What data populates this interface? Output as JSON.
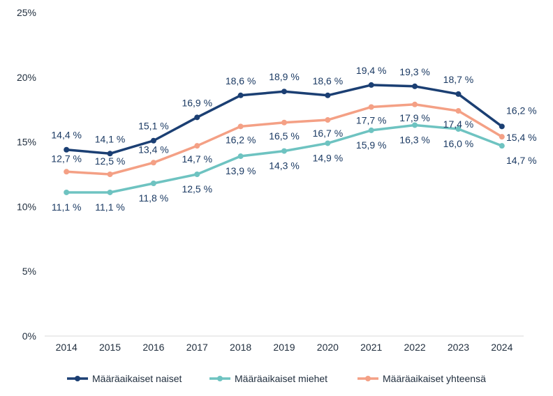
{
  "chart_data": {
    "type": "line",
    "categories": [
      "2014",
      "2015",
      "2016",
      "2017",
      "2018",
      "2019",
      "2020",
      "2021",
      "2022",
      "2023",
      "2024"
    ],
    "ylim": [
      0,
      25
    ],
    "yticks": [
      0,
      5,
      10,
      15,
      20,
      25
    ],
    "ytick_labels": [
      "0%",
      "5%",
      "10%",
      "15%",
      "20%",
      "25%"
    ],
    "legend_position": "bottom",
    "series": [
      {
        "name": "Määräaikaiset naiset",
        "color": "#1b3f73",
        "values": [
          14.4,
          14.1,
          15.1,
          16.9,
          18.6,
          18.9,
          18.6,
          19.4,
          19.3,
          18.7,
          16.2
        ],
        "labels": [
          "14,4 %",
          "14,1 %",
          "15,1 %",
          "16,9 %",
          "18,6 %",
          "18,9 %",
          "18,6 %",
          "19,4 %",
          "19,3 %",
          "18,7 %",
          "16,2 %"
        ]
      },
      {
        "name": "Määräaikaiset miehet",
        "color": "#6ec3c1",
        "values": [
          11.1,
          11.1,
          11.8,
          12.5,
          13.9,
          14.3,
          14.9,
          15.9,
          16.3,
          16.0,
          14.7
        ],
        "labels": [
          "11,1 %",
          "11,1 %",
          "11,8 %",
          "12,5 %",
          "13,9 %",
          "14,3 %",
          "14,9 %",
          "15,9 %",
          "16,3 %",
          "16,0 %",
          "14,7 %"
        ]
      },
      {
        "name": "Määräaikaiset yhteensä",
        "color": "#f4a085",
        "values": [
          12.7,
          12.5,
          13.4,
          14.7,
          16.2,
          16.5,
          16.7,
          17.7,
          17.9,
          17.4,
          15.4
        ],
        "labels": [
          "12,7 %",
          "12,5 %",
          "13,4 %",
          "14,7 %",
          "16,2 %",
          "16,5 %",
          "16,7 %",
          "17,7 %",
          "17,9 %",
          "17,4 %",
          "15,4 %"
        ]
      }
    ]
  }
}
